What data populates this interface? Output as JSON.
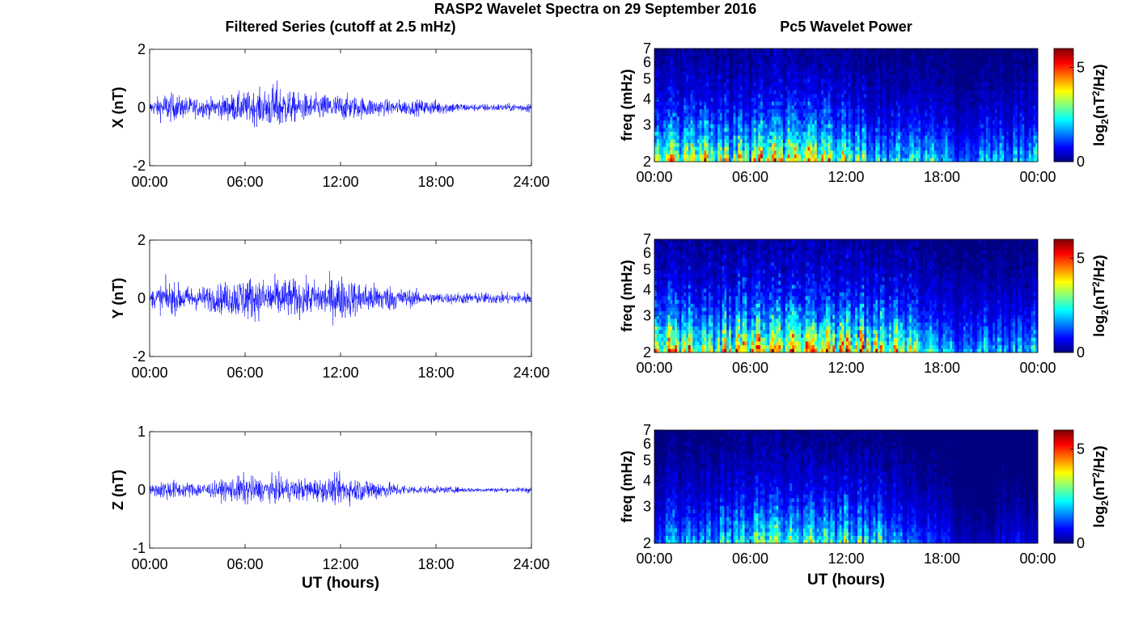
{
  "figure": {
    "title": "RASP2 Wavelet Spectra on 29 September 2016",
    "left_title": "Filtered Series (cutoff at 2.5 mHz)",
    "right_title": "Pc5 Wavelet Power",
    "x_label": "UT (hours)"
  },
  "chart_data": [
    {
      "type": "line",
      "panel": "X",
      "ylabel": "X (nT)",
      "xlim": [
        0,
        24
      ],
      "ylim": [
        -2,
        2
      ],
      "xticks": [
        "00:00",
        "06:00",
        "12:00",
        "18:00",
        "24:00"
      ],
      "yticks": [
        "-2",
        "0",
        "2"
      ],
      "color": "#0000ff",
      "envelope": {
        "hours": [
          0,
          1,
          2,
          3,
          4,
          5,
          6,
          7,
          8,
          9,
          10,
          11,
          12,
          13,
          14,
          15,
          16,
          17,
          18,
          19,
          20,
          21,
          22,
          23,
          24
        ],
        "amplitude_nT": [
          0.3,
          0.8,
          0.6,
          0.5,
          0.5,
          0.7,
          0.8,
          0.9,
          1.3,
          0.8,
          0.7,
          0.7,
          0.7,
          0.6,
          0.5,
          0.4,
          0.4,
          0.4,
          0.4,
          0.3,
          0.2,
          0.2,
          0.2,
          0.2,
          0.3
        ]
      }
    },
    {
      "type": "line",
      "panel": "Y",
      "ylabel": "Y (nT)",
      "xlim": [
        0,
        24
      ],
      "ylim": [
        -2,
        2
      ],
      "xticks": [
        "00:00",
        "06:00",
        "12:00",
        "18:00",
        "24:00"
      ],
      "yticks": [
        "-2",
        "0",
        "2"
      ],
      "color": "#0000ff",
      "envelope": {
        "hours": [
          0,
          1,
          2,
          3,
          4,
          5,
          6,
          7,
          8,
          9,
          10,
          11,
          12,
          13,
          14,
          15,
          16,
          17,
          18,
          19,
          20,
          21,
          22,
          23,
          24
        ],
        "amplitude_nT": [
          0.4,
          0.9,
          0.7,
          0.6,
          0.7,
          0.9,
          1.2,
          1.0,
          1.1,
          1.0,
          0.9,
          1.0,
          1.2,
          0.9,
          0.8,
          0.7,
          0.5,
          0.4,
          0.3,
          0.3,
          0.3,
          0.3,
          0.3,
          0.3,
          0.4
        ]
      }
    },
    {
      "type": "line",
      "panel": "Z",
      "ylabel": "Z (nT)",
      "xlim": [
        0,
        24
      ],
      "ylim": [
        -1,
        1
      ],
      "xticks": [
        "00:00",
        "06:00",
        "12:00",
        "18:00",
        "24:00"
      ],
      "yticks": [
        "-1",
        "0",
        "1"
      ],
      "color": "#0000ff",
      "envelope": {
        "hours": [
          0,
          1,
          2,
          3,
          4,
          5,
          6,
          7,
          8,
          9,
          10,
          11,
          12,
          13,
          14,
          15,
          16,
          17,
          18,
          19,
          20,
          21,
          22,
          23,
          24
        ],
        "amplitude_nT": [
          0.1,
          0.3,
          0.2,
          0.2,
          0.2,
          0.3,
          0.4,
          0.3,
          0.35,
          0.3,
          0.3,
          0.3,
          0.4,
          0.3,
          0.3,
          0.2,
          0.15,
          0.1,
          0.1,
          0.08,
          0.07,
          0.06,
          0.06,
          0.06,
          0.1
        ]
      }
    },
    {
      "type": "heatmap",
      "panel": "X",
      "ylabel": "freq (mHz)",
      "xlim": [
        0,
        24
      ],
      "ylim": [
        2,
        7
      ],
      "yscale": "log",
      "xticks": [
        "00:00",
        "06:00",
        "12:00",
        "18:00",
        "00:00"
      ],
      "yticks": [
        "2",
        "3",
        "4",
        "5",
        "6",
        "7"
      ],
      "colorbar": {
        "label": "log2(nT^2/Hz)",
        "range": [
          0,
          6
        ],
        "ticks": [
          "0",
          "5"
        ]
      },
      "colormap": "jet",
      "power_profile": {
        "hours": [
          0,
          1,
          2,
          3,
          4,
          5,
          6,
          7,
          8,
          9,
          10,
          11,
          12,
          13,
          14,
          15,
          16,
          17,
          18,
          19,
          20,
          21,
          22,
          23,
          24
        ],
        "peak_log2_power": [
          4.0,
          5.5,
          5.0,
          5.5,
          4.5,
          5.0,
          4.5,
          6.0,
          5.5,
          5.5,
          5.5,
          5.0,
          4.5,
          4.0,
          3.0,
          3.0,
          3.5,
          3.0,
          3.0,
          1.5,
          2.0,
          3.0,
          2.5,
          3.0,
          3.0
        ]
      }
    },
    {
      "type": "heatmap",
      "panel": "Y",
      "ylabel": "freq (mHz)",
      "xlim": [
        0,
        24
      ],
      "ylim": [
        2,
        7
      ],
      "yscale": "log",
      "xticks": [
        "00:00",
        "06:00",
        "12:00",
        "18:00",
        "00:00"
      ],
      "yticks": [
        "2",
        "3",
        "4",
        "5",
        "6",
        "7"
      ],
      "colorbar": {
        "label": "log2(nT^2/Hz)",
        "range": [
          0,
          6
        ],
        "ticks": [
          "0",
          "5"
        ]
      },
      "colormap": "jet",
      "power_profile": {
        "hours": [
          0,
          1,
          2,
          3,
          4,
          5,
          6,
          7,
          8,
          9,
          10,
          11,
          12,
          13,
          14,
          15,
          16,
          17,
          18,
          19,
          20,
          21,
          22,
          23,
          24
        ],
        "peak_log2_power": [
          4.5,
          6.0,
          5.5,
          4.5,
          5.0,
          6.0,
          6.0,
          6.0,
          6.0,
          6.0,
          6.0,
          6.0,
          6.0,
          6.0,
          5.5,
          5.0,
          5.0,
          3.5,
          3.0,
          2.0,
          2.5,
          3.0,
          2.5,
          3.0,
          3.0
        ]
      }
    },
    {
      "type": "heatmap",
      "panel": "Z",
      "ylabel": "freq (mHz)",
      "xlim": [
        0,
        24
      ],
      "ylim": [
        2,
        7
      ],
      "yscale": "log",
      "xticks": [
        "00:00",
        "06:00",
        "12:00",
        "18:00",
        "00:00"
      ],
      "yticks": [
        "2",
        "3",
        "4",
        "5",
        "6",
        "7"
      ],
      "colorbar": {
        "label": "log2(nT^2/Hz)",
        "range": [
          0,
          6
        ],
        "ticks": [
          "0",
          "5"
        ]
      },
      "colormap": "jet",
      "power_profile": {
        "hours": [
          0,
          1,
          2,
          3,
          4,
          5,
          6,
          7,
          8,
          9,
          10,
          11,
          12,
          13,
          14,
          15,
          16,
          17,
          18,
          19,
          20,
          21,
          22,
          23,
          24
        ],
        "peak_log2_power": [
          1.0,
          3.0,
          2.5,
          2.5,
          3.0,
          3.5,
          3.5,
          4.5,
          4.0,
          3.5,
          4.0,
          3.5,
          4.0,
          3.5,
          3.5,
          2.5,
          2.0,
          1.5,
          1.5,
          0.5,
          0.5,
          0.5,
          1.0,
          1.0,
          0.5
        ]
      }
    }
  ]
}
